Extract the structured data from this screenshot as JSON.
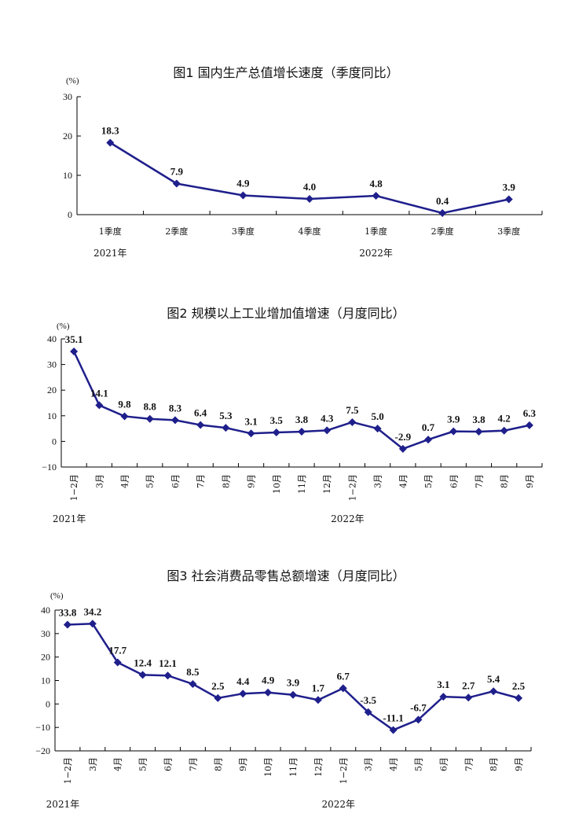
{
  "chart_data": [
    {
      "type": "line",
      "title": "图1   国内生产总值增长速度（季度同比）",
      "unit_label": "(%)",
      "categories": [
        "1季度",
        "2季度",
        "3季度",
        "4季度",
        "1季度",
        "2季度",
        "3季度"
      ],
      "values": [
        18.3,
        7.9,
        4.9,
        4.0,
        4.8,
        0.4,
        3.9
      ],
      "value_labels": [
        "18.3",
        "7.9",
        "4.9",
        "4.0",
        "4.8",
        "0.4",
        "3.9"
      ],
      "ylim": [
        0,
        30
      ],
      "yticks": [
        0,
        10,
        20,
        30
      ],
      "year_labels": [
        {
          "text": "2021年",
          "index": 0
        },
        {
          "text": "2022年",
          "index": 4
        }
      ],
      "color": "#1f1f8c"
    },
    {
      "type": "line",
      "title": "图2   规模以上工业增加值增速（月度同比）",
      "unit_label": "(%)",
      "categories": [
        "1−2月",
        "3月",
        "4月",
        "5月",
        "6月",
        "7月",
        "8月",
        "9月",
        "10月",
        "11月",
        "12月",
        "1−2月",
        "3月",
        "4月",
        "5月",
        "6月",
        "7月",
        "8月",
        "9月"
      ],
      "values": [
        35.1,
        14.1,
        9.8,
        8.8,
        8.3,
        6.4,
        5.3,
        3.1,
        3.5,
        3.8,
        4.3,
        7.5,
        5.0,
        -2.9,
        0.7,
        3.9,
        3.8,
        4.2,
        6.3
      ],
      "value_labels": [
        "35.1",
        "14.1",
        "9.8",
        "8.8",
        "8.3",
        "6.4",
        "5.3",
        "3.1",
        "3.5",
        "3.8",
        "4.3",
        "7.5",
        "5.0",
        "-2.9",
        "0.7",
        "3.9",
        "3.8",
        "4.2",
        "6.3"
      ],
      "ylim": [
        -10,
        40
      ],
      "yticks": [
        -10,
        0,
        10,
        20,
        30,
        40
      ],
      "year_labels": [
        {
          "text": "2021年",
          "index": 0
        },
        {
          "text": "2022年",
          "index": 11
        }
      ],
      "color": "#1f1f8c"
    },
    {
      "type": "line",
      "title": "图3   社会消费品零售总额增速（月度同比）",
      "unit_label": "(%)",
      "categories": [
        "1−2月",
        "3月",
        "4月",
        "5月",
        "6月",
        "7月",
        "8月",
        "9月",
        "10月",
        "11月",
        "12月",
        "1−2月",
        "3月",
        "4月",
        "5月",
        "6月",
        "7月",
        "8月",
        "9月"
      ],
      "values": [
        33.8,
        34.2,
        17.7,
        12.4,
        12.1,
        8.5,
        2.5,
        4.4,
        4.9,
        3.9,
        1.7,
        6.7,
        -3.5,
        -11.1,
        -6.7,
        3.1,
        2.7,
        5.4,
        2.5
      ],
      "value_labels": [
        "33.8",
        "34.2",
        "17.7",
        "12.4",
        "12.1",
        "8.5",
        "2.5",
        "4.4",
        "4.9",
        "3.9",
        "1.7",
        "6.7",
        "-3.5",
        "-11.1",
        "-6.7",
        "3.1",
        "2.7",
        "5.4",
        "2.5"
      ],
      "ylim": [
        -20,
        40
      ],
      "yticks": [
        -20,
        -10,
        0,
        10,
        20,
        30,
        40
      ],
      "year_labels": [
        {
          "text": "2021年",
          "index": 0
        },
        {
          "text": "2022年",
          "index": 11
        }
      ],
      "color": "#1f1f8c"
    }
  ]
}
